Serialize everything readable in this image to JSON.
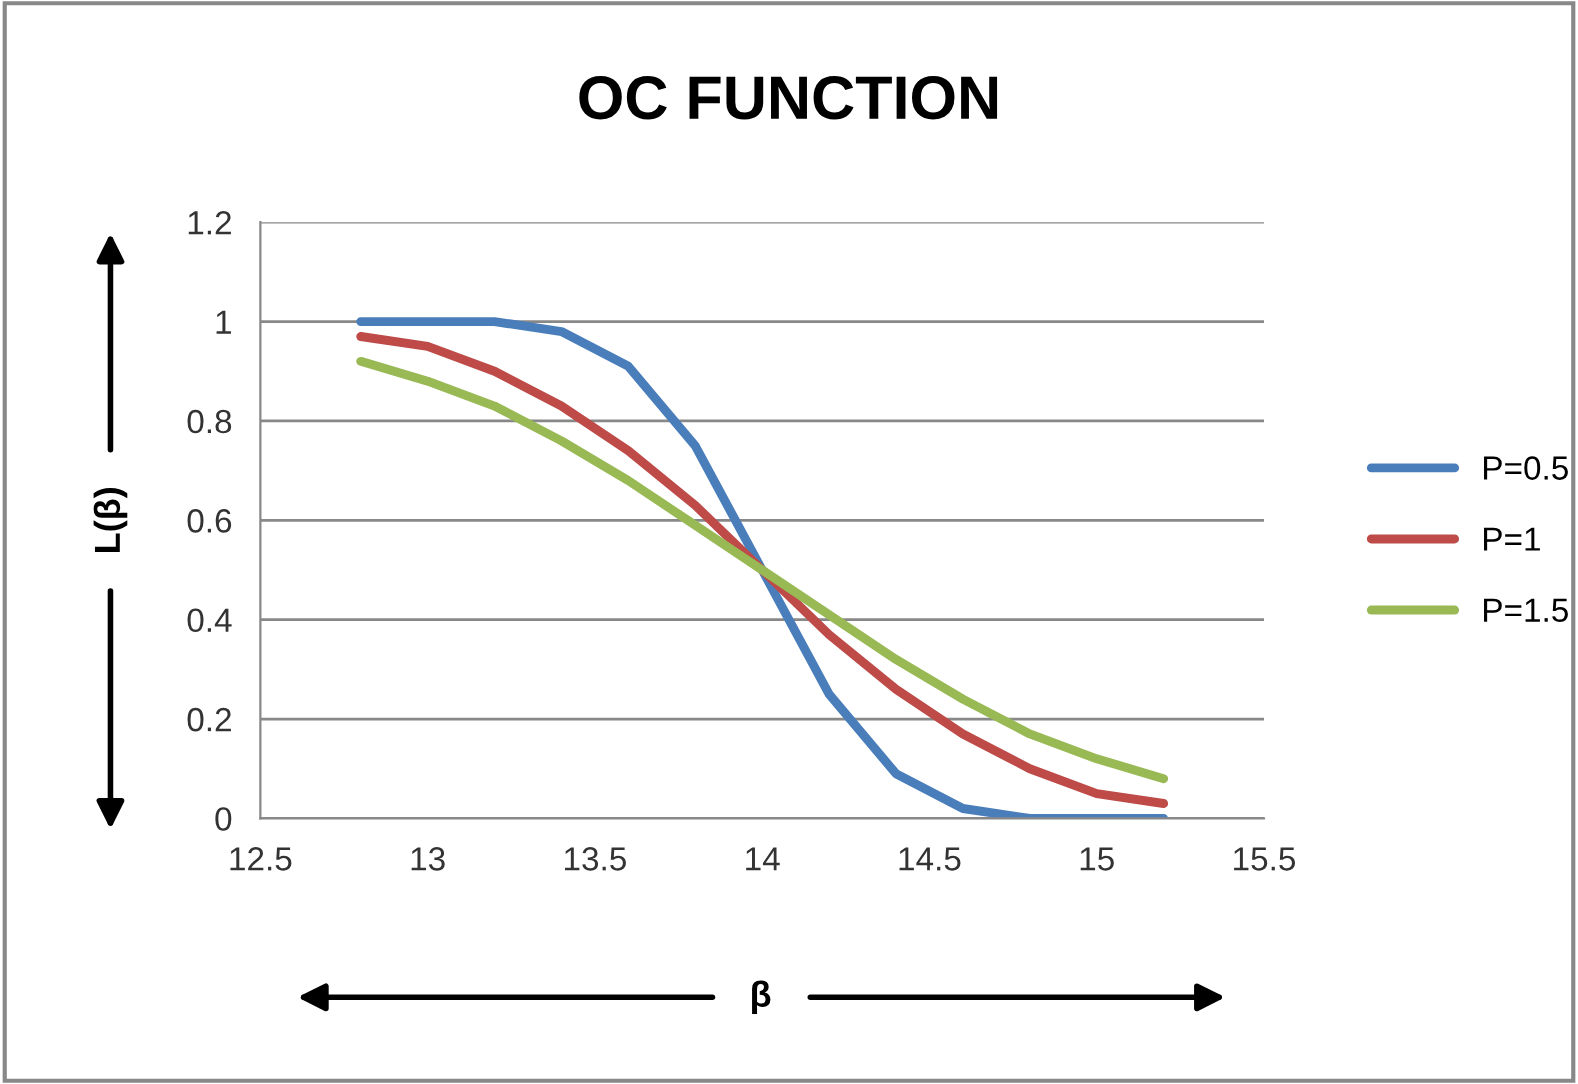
{
  "chart_data": {
    "type": "line",
    "title": "OC FUNCTION",
    "xlabel": "β",
    "ylabel": "L(β)",
    "x": [
      12.8,
      13.0,
      13.2,
      13.4,
      13.6,
      13.8,
      14.0,
      14.2,
      14.4,
      14.6,
      14.8,
      15.0,
      15.2
    ],
    "series": [
      {
        "name": "P=0.5",
        "color": "#4a7ebb",
        "values": [
          1.0,
          1.0,
          1.0,
          0.98,
          0.91,
          0.75,
          0.5,
          0.25,
          0.09,
          0.02,
          0.0,
          0.0,
          0.0
        ]
      },
      {
        "name": "P=1",
        "color": "#be4b48",
        "values": [
          0.97,
          0.95,
          0.9,
          0.83,
          0.74,
          0.63,
          0.5,
          0.37,
          0.26,
          0.17,
          0.1,
          0.05,
          0.03
        ]
      },
      {
        "name": "P=1.5",
        "color": "#98b954",
        "values": [
          0.92,
          0.88,
          0.83,
          0.76,
          0.68,
          0.59,
          0.5,
          0.41,
          0.32,
          0.24,
          0.17,
          0.12,
          0.08
        ]
      }
    ],
    "xlim": [
      12.5,
      15.5
    ],
    "xticks": [
      12.5,
      13,
      13.5,
      14,
      14.5,
      15,
      15.5
    ],
    "ylim": [
      0,
      1.2
    ],
    "yticks": [
      0,
      0.2,
      0.4,
      0.6,
      0.8,
      1,
      1.2
    ],
    "grid": "y",
    "legend": "right",
    "marker": "none",
    "line_style": "solid"
  }
}
